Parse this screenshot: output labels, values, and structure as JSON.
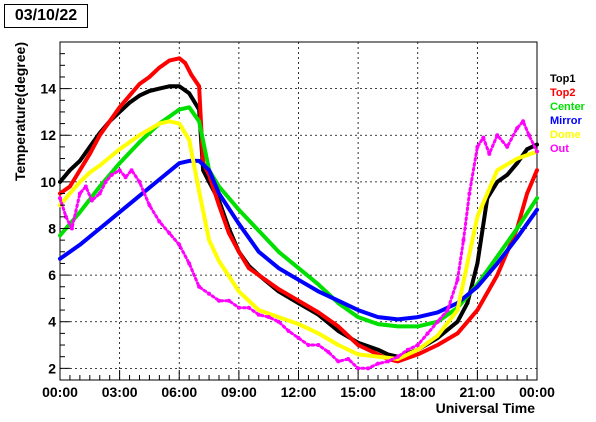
{
  "date_label": "03/10/22",
  "chart_data": {
    "type": "scatter",
    "title": "",
    "xlabel": "Universal Time",
    "ylabel": "Temperature(degree)",
    "xlim": [
      0,
      24
    ],
    "ylim": [
      1.5,
      16
    ],
    "x_tick_labels": [
      "00:00",
      "03:00",
      "06:00",
      "09:00",
      "12:00",
      "15:00",
      "18:00",
      "21:00",
      "00:00"
    ],
    "x_tick_values": [
      0,
      3,
      6,
      9,
      12,
      15,
      18,
      21,
      24
    ],
    "y_tick_values": [
      2,
      4,
      6,
      8,
      10,
      12,
      14
    ],
    "grid": true,
    "legend_placement": "right",
    "series": [
      {
        "name": "Top1",
        "color": "#000000",
        "x": [
          0,
          0.5,
          1,
          1.5,
          2,
          2.5,
          3,
          3.5,
          4,
          4.5,
          5,
          5.5,
          6,
          6.5,
          7,
          7.2,
          7.5,
          8,
          8.5,
          9,
          9.5,
          10,
          11,
          12,
          13,
          14,
          15,
          16,
          16.5,
          17,
          18,
          19,
          20,
          20.5,
          21,
          21.5,
          22,
          22.5,
          23,
          23.5,
          24
        ],
        "y": [
          10.0,
          10.5,
          10.9,
          11.5,
          12.1,
          12.6,
          13.0,
          13.4,
          13.7,
          13.9,
          14.0,
          14.1,
          14.1,
          13.8,
          13.1,
          10.5,
          10.0,
          9.2,
          8.0,
          7.0,
          6.4,
          6.0,
          5.3,
          4.8,
          4.3,
          3.6,
          3.1,
          2.8,
          2.6,
          2.5,
          2.8,
          3.3,
          4.0,
          4.8,
          6.5,
          9.3,
          10.0,
          10.3,
          10.8,
          11.4,
          11.6
        ]
      },
      {
        "name": "Top2",
        "color": "#ff0000",
        "x": [
          0,
          0.5,
          1,
          1.5,
          2,
          2.5,
          3,
          3.5,
          4,
          4.5,
          5,
          5.5,
          6,
          6.3,
          6.6,
          7,
          7.2,
          7.5,
          8,
          8.5,
          9,
          9.5,
          10,
          11,
          12,
          13,
          14,
          15,
          16,
          16.5,
          17,
          18,
          19,
          20,
          21,
          22,
          22.5,
          23,
          23.5,
          24
        ],
        "y": [
          9.5,
          9.8,
          10.5,
          11.2,
          12.0,
          12.6,
          13.2,
          13.7,
          14.2,
          14.5,
          14.9,
          15.2,
          15.3,
          15.1,
          14.6,
          14.1,
          10.8,
          10.3,
          9.0,
          7.8,
          7.0,
          6.3,
          6.0,
          5.4,
          4.9,
          4.4,
          3.8,
          3.0,
          2.6,
          2.4,
          2.3,
          2.6,
          3.0,
          3.5,
          4.5,
          6.0,
          7.0,
          8.0,
          9.5,
          10.5
        ]
      },
      {
        "name": "Center",
        "color": "#00e000",
        "x": [
          0,
          1,
          2,
          3,
          4,
          5,
          6,
          6.5,
          7,
          7.5,
          8,
          9,
          10,
          11,
          12,
          13,
          14,
          15,
          16,
          17,
          18,
          19,
          20,
          21,
          22,
          23,
          24
        ],
        "y": [
          7.7,
          8.7,
          9.8,
          10.8,
          11.7,
          12.5,
          13.1,
          13.2,
          12.6,
          10.5,
          9.8,
          8.8,
          7.9,
          7.0,
          6.3,
          5.6,
          4.8,
          4.2,
          3.9,
          3.8,
          3.8,
          4.0,
          4.6,
          5.6,
          6.8,
          8.0,
          9.3
        ]
      },
      {
        "name": "Mirror",
        "color": "#0000ff",
        "x": [
          0,
          1,
          2,
          3,
          4,
          5,
          6,
          6.5,
          7,
          7.5,
          8,
          9,
          10,
          11,
          12,
          13,
          14,
          15,
          16,
          17,
          18,
          19,
          20,
          21,
          22,
          23,
          24
        ],
        "y": [
          6.7,
          7.3,
          8.0,
          8.7,
          9.4,
          10.1,
          10.8,
          10.9,
          10.9,
          10.5,
          9.5,
          8.2,
          7.0,
          6.3,
          5.8,
          5.3,
          4.9,
          4.5,
          4.2,
          4.1,
          4.2,
          4.4,
          4.8,
          5.5,
          6.5,
          7.6,
          8.8
        ]
      },
      {
        "name": "Dome",
        "color": "#ffff00",
        "x": [
          0,
          0.5,
          1,
          1.5,
          2,
          3,
          4,
          5,
          5.5,
          6,
          6.5,
          7,
          7.5,
          8,
          9,
          10,
          11,
          12,
          13,
          14,
          15,
          16,
          17,
          18,
          19,
          20,
          20.5,
          21,
          21.5,
          22,
          23,
          24
        ],
        "y": [
          9.0,
          9.5,
          10.0,
          10.4,
          10.7,
          11.4,
          12.0,
          12.5,
          12.6,
          12.5,
          11.8,
          9.6,
          7.5,
          6.6,
          5.3,
          4.5,
          4.2,
          3.9,
          3.5,
          3.0,
          2.6,
          2.5,
          2.4,
          2.8,
          3.4,
          4.5,
          6.5,
          8.5,
          9.5,
          10.5,
          11.0,
          11.3
        ]
      },
      {
        "name": "Out",
        "color": "#ff00ff",
        "x": [
          0,
          0.3,
          0.6,
          1,
          1.3,
          1.6,
          2,
          2.3,
          2.6,
          3,
          3.3,
          3.6,
          4,
          4.5,
          5,
          5.5,
          6,
          6.5,
          7,
          7.5,
          8,
          8.5,
          9,
          9.5,
          10,
          10.5,
          11,
          11.5,
          12,
          12.5,
          13,
          13.5,
          14,
          14.5,
          15,
          15.5,
          16,
          16.5,
          17,
          17.5,
          18,
          18.5,
          19,
          19.5,
          20,
          20.3,
          20.6,
          21,
          21.3,
          21.6,
          22,
          22.5,
          23,
          23.3,
          23.6,
          24
        ],
        "y": [
          9.3,
          8.5,
          8.0,
          9.5,
          9.8,
          9.2,
          9.5,
          10.0,
          10.3,
          10.5,
          10.2,
          10.5,
          10.0,
          9.0,
          8.3,
          7.8,
          7.3,
          6.5,
          5.5,
          5.2,
          4.9,
          4.9,
          4.6,
          4.6,
          4.3,
          4.2,
          4.0,
          3.6,
          3.3,
          3.0,
          3.0,
          2.7,
          2.3,
          2.4,
          2.0,
          2.0,
          2.2,
          2.3,
          2.5,
          2.8,
          3.0,
          3.5,
          4.0,
          4.5,
          5.8,
          7.5,
          9.5,
          11.5,
          11.9,
          11.2,
          12.0,
          11.5,
          12.3,
          12.6,
          12.0,
          11.3
        ]
      }
    ]
  }
}
